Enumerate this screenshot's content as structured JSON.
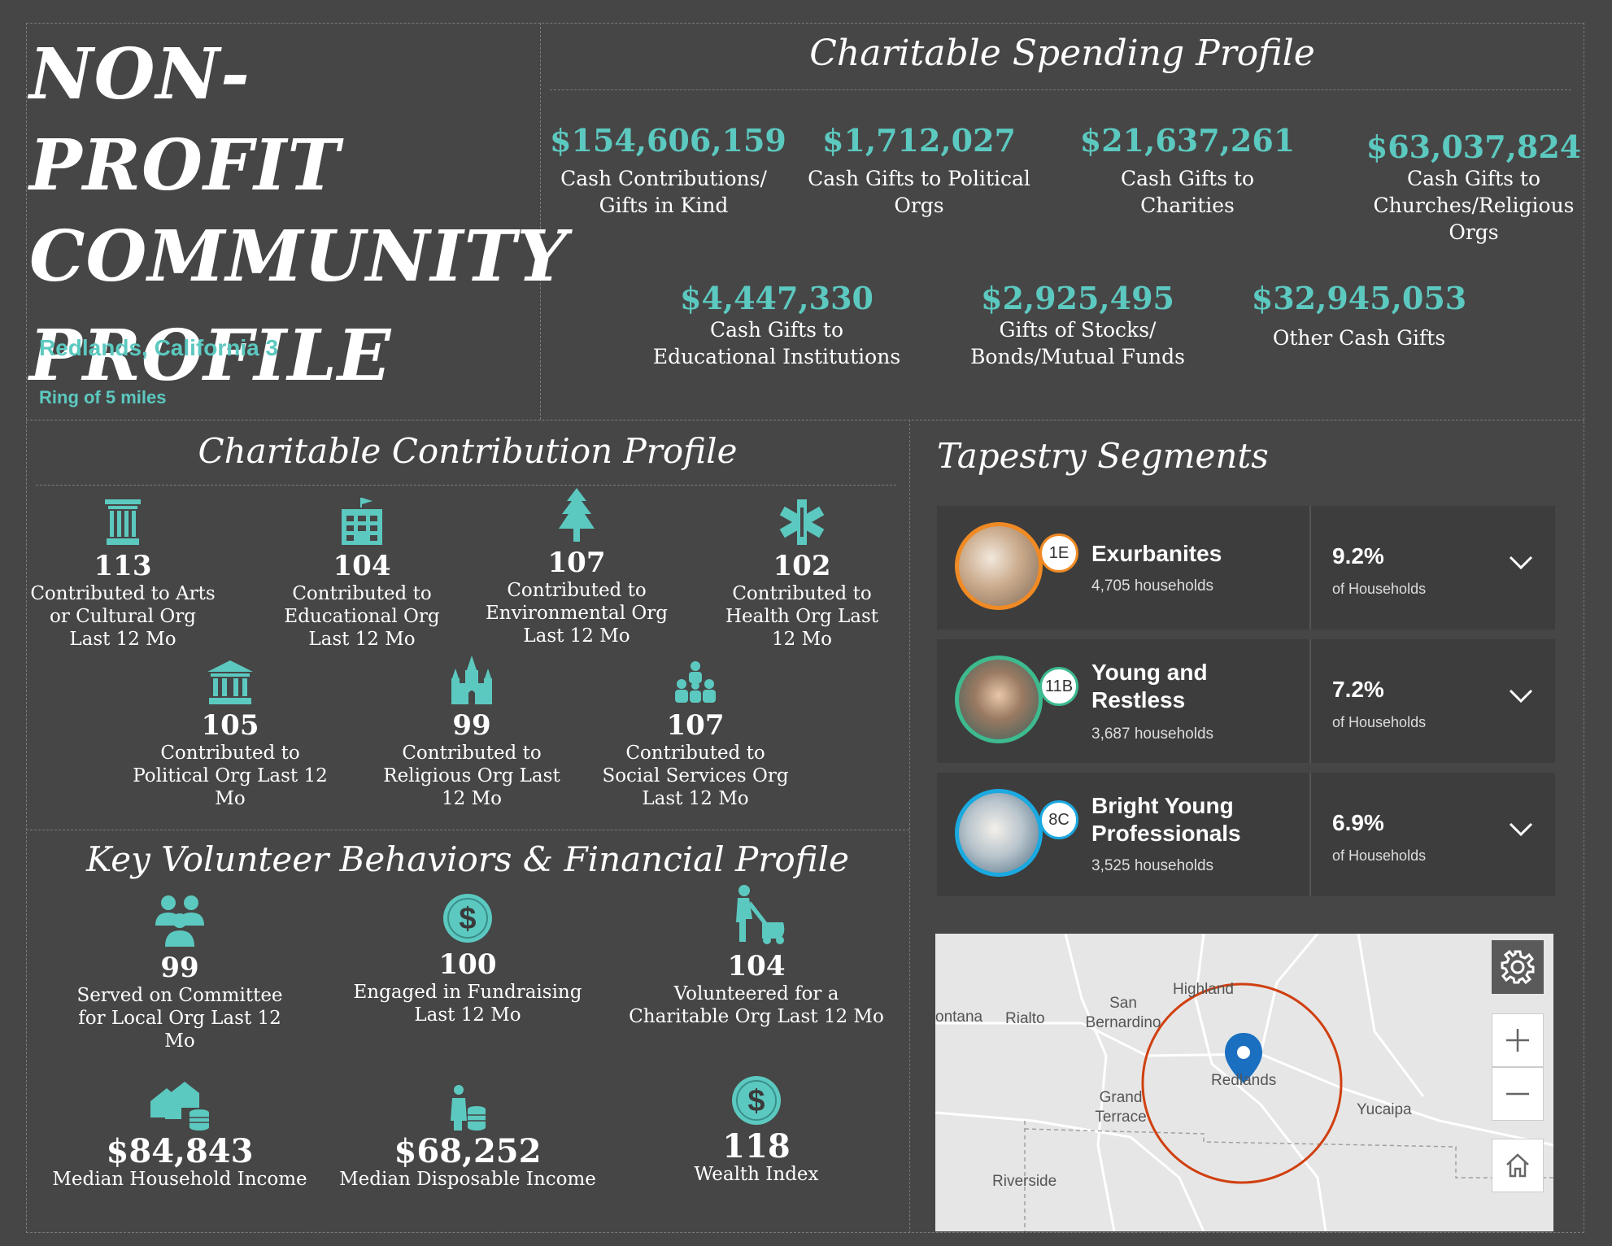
{
  "header": {
    "title_lines": [
      "NON-PROFIT",
      "COMMUNITY",
      "PROFILE"
    ],
    "location": "Redlands, California 3",
    "ring": "Ring of 5 miles"
  },
  "spending": {
    "title": "Charitable Spending Profile",
    "items": [
      {
        "value": "$154,606,159",
        "label": "Cash Contributions/ Gifts in Kind"
      },
      {
        "value": "$1,712,027",
        "label": "Cash Gifts to Political Orgs"
      },
      {
        "value": "$21,637,261",
        "label": "Cash Gifts to Charities"
      },
      {
        "value": "$63,037,824",
        "label": "Cash Gifts to Churches/Religious Orgs"
      },
      {
        "value": "$4,447,330",
        "label": "Cash Gifts to Educational Institutions"
      },
      {
        "value": "$2,925,495",
        "label": "Gifts of Stocks/ Bonds/Mutual Funds"
      },
      {
        "value": "$32,945,053",
        "label": "Other Cash Gifts"
      }
    ]
  },
  "contribution": {
    "title": "Charitable Contribution Profile",
    "items": [
      {
        "value": "113",
        "label": "Contributed to Arts or Cultural Org Last 12 Mo",
        "icon": "column-icon"
      },
      {
        "value": "104",
        "label": "Contributed to Educational Org Last 12 Mo",
        "icon": "school-icon"
      },
      {
        "value": "107",
        "label": "Contributed to Environmental Org Last 12 Mo",
        "icon": "tree-icon"
      },
      {
        "value": "102",
        "label": "Contributed to Health Org Last 12 Mo",
        "icon": "medical-star-icon"
      },
      {
        "value": "105",
        "label": "Contributed to Political Org Last 12 Mo",
        "icon": "government-building-icon"
      },
      {
        "value": "99",
        "label": "Contributed to Religious Org Last 12 Mo",
        "icon": "church-icon"
      },
      {
        "value": "107",
        "label": "Contributed to Social Services Org Last 12 Mo",
        "icon": "people-group-icon"
      }
    ]
  },
  "volunteer": {
    "title": "Key Volunteer Behaviors & Financial Profile",
    "items": [
      {
        "value": "99",
        "label": "Served on Committee for Local Org Last 12 Mo",
        "icon": "group-icon"
      },
      {
        "value": "100",
        "label": "Engaged in Fundraising Last 12 Mo",
        "icon": "dollar-circle-icon"
      },
      {
        "value": "104",
        "label": "Volunteered for a Charitable Org Last 12 Mo",
        "icon": "lawn-mower-icon"
      },
      {
        "value": "$84,843",
        "label": "Median Household Income",
        "icon": "house-coins-icon"
      },
      {
        "value": "$68,252",
        "label": "Median Disposable Income",
        "icon": "person-coins-icon"
      },
      {
        "value": "118",
        "label": "Wealth Index",
        "icon": "dollar-circle-icon"
      }
    ]
  },
  "tapestry": {
    "title": "Tapestry Segments",
    "segments": [
      {
        "code": "1E",
        "name": "Exurbanites",
        "households": "4,705 households",
        "pct": "9.2%",
        "pct_label": "of Households",
        "color": "#f08a24"
      },
      {
        "code": "11B",
        "name": "Young and Restless",
        "households": "3,687 households",
        "pct": "7.2%",
        "pct_label": "of Households",
        "color": "#3dbb8f"
      },
      {
        "code": "8C",
        "name": "Bright Young Professionals",
        "households": "3,525 households",
        "pct": "6.9%",
        "pct_label": "of Households",
        "color": "#1aa9e0"
      }
    ]
  },
  "map": {
    "places": [
      "ontana",
      "Rialto",
      "San Bernardino",
      "Highland",
      "Redlands",
      "Grand Terrace",
      "Yucaipa",
      "Riverside"
    ],
    "ring_color": "#d04010",
    "pin_color": "#1a6fc1"
  }
}
